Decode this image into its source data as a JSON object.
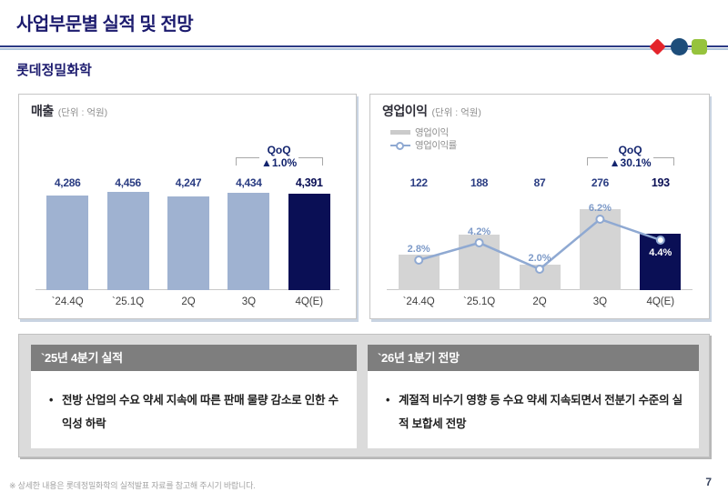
{
  "header": {
    "title": "사업부문별 실적 및 전망",
    "subtitle": "롯데정밀화학",
    "page_number": "7"
  },
  "footer": {
    "note": "※ 상세한 내용은 롯데정밀화학의 실적발표 자료를 참고해 주시기 바랍니다."
  },
  "colors": {
    "title_navy": "#1c1b6e",
    "highlight_navy": "#0a0f55",
    "revenue_bar": "#9fb2d1",
    "profit_bar": "#d4d4d4",
    "margin_line": "#8fa9d2",
    "value_label": "#2a3c82",
    "pct_label": "#7d9ac8",
    "deco_red": "#e4242b",
    "deco_blue": "#1d4d7a",
    "deco_green": "#96c33d",
    "box_header_gray": "#7e7e7e"
  },
  "chart_data": [
    {
      "type": "bar",
      "title": "매출",
      "unit_label": "(단위 : 억원)",
      "categories": [
        "`24.4Q",
        "`25.1Q",
        "2Q",
        "3Q",
        "4Q(E)"
      ],
      "values": [
        4286,
        4456,
        4247,
        4434,
        4391
      ],
      "value_labels": [
        "4,286",
        "4,456",
        "4,247",
        "4,434",
        "4,391"
      ],
      "highlight_index": 4,
      "qoq": {
        "label": "QoQ",
        "change": "▲1.0%"
      },
      "ylim": [
        0,
        4600
      ],
      "grid": false,
      "legend_position": "none"
    },
    {
      "type": "bar",
      "title": "영업이익",
      "unit_label": "(단위 : 억원)",
      "categories": [
        "`24.4Q",
        "`25.1Q",
        "2Q",
        "3Q",
        "4Q(E)"
      ],
      "values": [
        122,
        188,
        87,
        276,
        193
      ],
      "value_labels": [
        "122",
        "188",
        "87",
        "276",
        "193"
      ],
      "highlight_index": 4,
      "qoq": {
        "label": "QoQ",
        "change": "▲30.1%"
      },
      "ylim": [
        0,
        290
      ],
      "grid": false,
      "legend": [
        "영업이익",
        "영업이익률"
      ],
      "legend_position": "top-left",
      "line_series": {
        "name": "영업이익률",
        "values": [
          2.8,
          4.2,
          2.0,
          6.2,
          4.4
        ],
        "labels": [
          "2.8%",
          "4.2%",
          "2.0%",
          "6.2%",
          "4.4%"
        ],
        "ylim": [
          0,
          8
        ]
      }
    }
  ],
  "boxes": [
    {
      "title": "`25년 4분기 실적",
      "bullets": [
        "전방 산업의 수요 약세 지속에 따른 판매 물량 감소로 인한 수익성 하락"
      ]
    },
    {
      "title": "`26년 1분기 전망",
      "bullets": [
        "계절적 비수기 영향 등 수요 약세 지속되면서 전분기 수준의 실적 보합세 전망"
      ]
    }
  ]
}
